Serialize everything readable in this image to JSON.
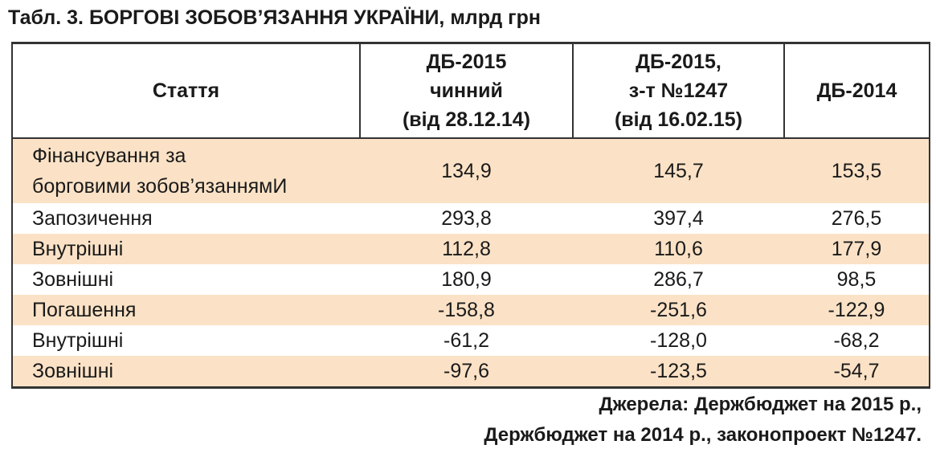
{
  "title": "Табл. 3. БОРГОВІ ЗОБОВ’ЯЗАННЯ УКРАЇНИ, млрд грн",
  "table": {
    "header": [
      [
        "Стаття"
      ],
      [
        "ДБ-2015",
        "чинний",
        "(від 28.12.14)"
      ],
      [
        "ДБ-2015,",
        "з-т №1247",
        "(від 16.02.15)"
      ],
      [
        "ДБ-2014"
      ]
    ],
    "rows": [
      {
        "label": [
          "Фінансування за",
          "борговими зобов’язаннямИ"
        ],
        "values": [
          "134,9",
          "145,7",
          "153,5"
        ]
      },
      {
        "label": [
          "Запозичення"
        ],
        "values": [
          "293,8",
          "397,4",
          "276,5"
        ]
      },
      {
        "label": [
          "Внутрішні"
        ],
        "values": [
          "112,8",
          "110,6",
          "177,9"
        ]
      },
      {
        "label": [
          "Зовнішні"
        ],
        "values": [
          "180,9",
          "286,7",
          "98,5"
        ]
      },
      {
        "label": [
          "Погашення"
        ],
        "values": [
          "-158,8",
          "-251,6",
          "-122,9"
        ]
      },
      {
        "label": [
          "Внутрішні"
        ],
        "values": [
          "-61,2",
          "-128,0",
          "-68,2"
        ]
      },
      {
        "label": [
          "Зовнішні"
        ],
        "values": [
          "-97,6",
          "-123,5",
          "-54,7"
        ]
      }
    ]
  },
  "source": [
    "Джерела: Держбюджет на 2015 р.,",
    "Держбюджет на 2014 р., законопроект №1247."
  ]
}
